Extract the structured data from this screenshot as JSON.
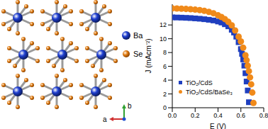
{
  "chart_data": {
    "type": "scatter",
    "x_label": "E (V)",
    "y_label": "J (mAcm⁻²)",
    "xlim": [
      0,
      0.8
    ],
    "xticks": [
      {
        "value": 0,
        "label": "0.0"
      },
      0.2,
      0.4,
      0.6,
      0.8
    ],
    "ylim": [
      0,
      15
    ],
    "yticks": [
      0,
      2,
      4,
      6,
      8,
      10,
      12
    ],
    "legend": "lower left",
    "series": [
      {
        "name": "TiO₂/CdS",
        "color": "#1f3fbf",
        "marker": "square",
        "x": [
          0,
          0.04,
          0.08,
          0.12,
          0.16,
          0.2,
          0.24,
          0.28,
          0.32,
          0.36,
          0.4,
          0.43,
          0.46,
          0.49,
          0.52,
          0.54,
          0.56,
          0.58,
          0.6,
          0.61,
          0.62,
          0.63,
          0.64,
          0.65,
          0.66,
          0.67
        ],
        "values": [
          13.1,
          13.08,
          13.06,
          13.03,
          13.0,
          12.95,
          12.9,
          12.83,
          12.75,
          12.65,
          12.5,
          12.35,
          12.1,
          11.8,
          11.3,
          10.9,
          10.3,
          9.5,
          8.5,
          7.8,
          7.0,
          6.1,
          5.0,
          3.8,
          2.5,
          0.8
        ]
      },
      {
        "name": "TiO₂/CdS/BaSe₃",
        "color": "#f08a1a",
        "marker": "circle",
        "x": [
          0,
          0.04,
          0.08,
          0.12,
          0.16,
          0.2,
          0.24,
          0.28,
          0.32,
          0.36,
          0.4,
          0.43,
          0.46,
          0.49,
          0.52,
          0.55,
          0.58,
          0.6,
          0.62,
          0.64,
          0.65,
          0.66,
          0.67,
          0.68,
          0.69,
          0.7,
          0.71
        ],
        "values": [
          14.4,
          14.38,
          14.36,
          14.32,
          14.28,
          14.22,
          14.15,
          14.05,
          13.9,
          13.7,
          13.4,
          13.15,
          12.85,
          12.45,
          11.95,
          11.2,
          10.3,
          9.6,
          8.7,
          7.6,
          6.9,
          6.1,
          5.3,
          4.4,
          3.4,
          2.2,
          0.7
        ]
      }
    ]
  },
  "diagram": {
    "atoms": [
      {
        "label": "Ba",
        "color": "#1f3fd0"
      },
      {
        "label": "Se",
        "color": "#e07a10"
      }
    ],
    "axes": {
      "horizontal": "a",
      "vertical": "b"
    }
  }
}
